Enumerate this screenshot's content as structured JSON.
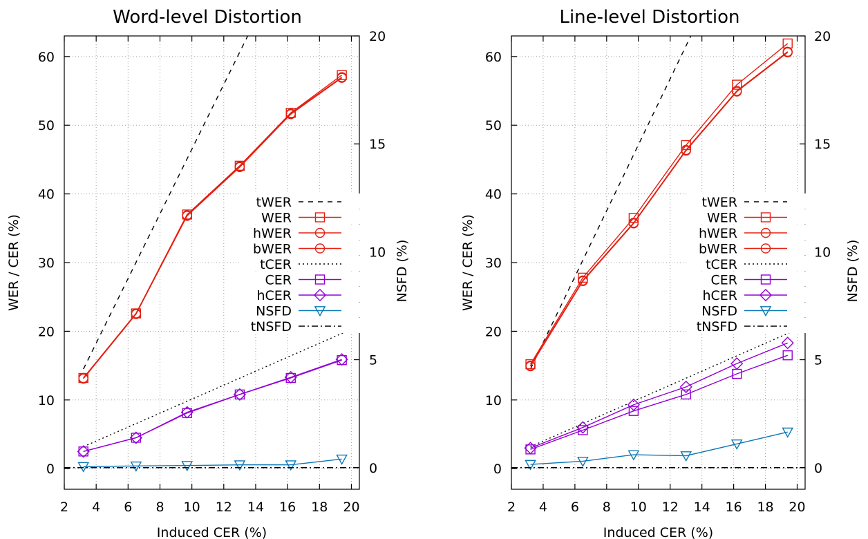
{
  "chart_data": [
    {
      "type": "line",
      "title": "Word-level Distortion",
      "xlabel": "Induced CER (%)",
      "ylabel": "WER / CER (%)",
      "y2label": "NSFD (%)",
      "xlim": [
        2,
        20.5
      ],
      "ylim": [
        -3,
        63
      ],
      "y2lim": [
        -1,
        20
      ],
      "xticks": [
        2,
        4,
        6,
        8,
        10,
        12,
        14,
        16,
        18,
        20
      ],
      "yticks": [
        0,
        10,
        20,
        30,
        40,
        50,
        60
      ],
      "y2ticks": [
        0,
        5,
        10,
        15,
        20
      ],
      "grid": true,
      "legend_position": "center-right",
      "series": [
        {
          "name": "tWER",
          "axis": "y",
          "style": "dashed",
          "color": "#000000",
          "marker": "none",
          "x": [
            3.2,
            13.5
          ],
          "y": [
            14.5,
            63
          ]
        },
        {
          "name": "WER",
          "axis": "y",
          "style": "solid",
          "color": "#e51e10",
          "marker": "square",
          "x": [
            3.2,
            6.5,
            9.7,
            13.0,
            16.2,
            19.4
          ],
          "y": [
            13.2,
            22.6,
            37.0,
            44.1,
            51.8,
            57.3
          ]
        },
        {
          "name": "hWER",
          "axis": "y",
          "style": "solid",
          "color": "#e51e10",
          "marker": "circle",
          "x": [
            3.2,
            6.5,
            9.7,
            13.0,
            16.2,
            19.4
          ],
          "y": [
            13.2,
            22.6,
            36.9,
            44.0,
            51.7,
            57.0
          ]
        },
        {
          "name": "bWER",
          "axis": "y",
          "style": "solid",
          "color": "#e51e10",
          "marker": "circle",
          "x": [
            3.2,
            6.5,
            9.7,
            13.0,
            16.2,
            19.4
          ],
          "y": [
            13.1,
            22.5,
            36.8,
            43.9,
            51.6,
            56.9
          ]
        },
        {
          "name": "tCER",
          "axis": "y",
          "style": "dotted",
          "color": "#000000",
          "marker": "none",
          "x": [
            3.2,
            20.5
          ],
          "y": [
            3.2,
            20.8
          ]
        },
        {
          "name": "CER",
          "axis": "y",
          "style": "solid",
          "color": "#9400d3",
          "marker": "square",
          "x": [
            3.2,
            6.5,
            9.7,
            13.0,
            16.2,
            19.4
          ],
          "y": [
            2.5,
            4.5,
            8.1,
            10.8,
            13.2,
            15.8
          ]
        },
        {
          "name": "hCER",
          "axis": "y",
          "style": "solid",
          "color": "#9400d3",
          "marker": "diamond",
          "x": [
            3.2,
            6.5,
            9.7,
            13.0,
            16.2,
            19.4
          ],
          "y": [
            2.5,
            4.5,
            8.2,
            10.8,
            13.3,
            15.9
          ]
        },
        {
          "name": "NSFD",
          "axis": "y2",
          "style": "solid",
          "color": "#0a77b5",
          "marker": "triangle-down",
          "x": [
            3.2,
            6.5,
            9.7,
            13.0,
            16.2,
            19.4
          ],
          "y": [
            0.05,
            0.08,
            0.1,
            0.13,
            0.13,
            0.4
          ]
        },
        {
          "name": "tNSFD",
          "axis": "y2",
          "style": "dashdot",
          "color": "#000000",
          "marker": "none",
          "x": [
            2,
            20.5
          ],
          "y": [
            0,
            0
          ]
        }
      ]
    },
    {
      "type": "line",
      "title": "Line-level Distortion",
      "xlabel": "Induced CER (%)",
      "ylabel": "WER / CER (%)",
      "y2label": "NSFD (%)",
      "xlim": [
        2,
        20.5
      ],
      "ylim": [
        -3,
        63
      ],
      "y2lim": [
        -1,
        20
      ],
      "xticks": [
        2,
        4,
        6,
        8,
        10,
        12,
        14,
        16,
        18,
        20
      ],
      "yticks": [
        0,
        10,
        20,
        30,
        40,
        50,
        60
      ],
      "y2ticks": [
        0,
        5,
        10,
        15,
        20
      ],
      "grid": true,
      "legend_position": "center-right",
      "series": [
        {
          "name": "tWER",
          "axis": "y",
          "style": "dashed",
          "color": "#000000",
          "marker": "none",
          "x": [
            3.2,
            13.3
          ],
          "y": [
            14.5,
            63
          ]
        },
        {
          "name": "WER",
          "axis": "y",
          "style": "solid",
          "color": "#e51e10",
          "marker": "square",
          "x": [
            3.2,
            6.5,
            9.7,
            13.0,
            16.2,
            19.4
          ],
          "y": [
            15.2,
            27.8,
            36.5,
            47.1,
            55.9,
            61.9
          ]
        },
        {
          "name": "hWER",
          "axis": "y",
          "style": "solid",
          "color": "#e51e10",
          "marker": "circle",
          "x": [
            3.2,
            6.5,
            9.7,
            13.0,
            16.2,
            19.4
          ],
          "y": [
            15.0,
            27.4,
            35.8,
            46.4,
            55.0,
            60.7
          ]
        },
        {
          "name": "bWER",
          "axis": "y",
          "style": "solid",
          "color": "#e51e10",
          "marker": "circle",
          "x": [
            3.2,
            6.5,
            9.7,
            13.0,
            16.2,
            19.4
          ],
          "y": [
            14.9,
            27.3,
            35.7,
            46.3,
            54.9,
            60.6
          ]
        },
        {
          "name": "tCER",
          "axis": "y",
          "style": "dotted",
          "color": "#000000",
          "marker": "none",
          "x": [
            3.2,
            20.5
          ],
          "y": [
            3.2,
            20.8
          ]
        },
        {
          "name": "CER",
          "axis": "y",
          "style": "solid",
          "color": "#9400d3",
          "marker": "square",
          "x": [
            3.2,
            6.5,
            9.7,
            13.0,
            16.2,
            19.4
          ],
          "y": [
            2.8,
            5.6,
            8.4,
            10.8,
            13.8,
            16.5
          ]
        },
        {
          "name": "hCER",
          "axis": "y",
          "style": "solid",
          "color": "#9400d3",
          "marker": "diamond",
          "x": [
            3.2,
            6.5,
            9.7,
            13.0,
            16.2,
            19.4
          ],
          "y": [
            3.0,
            6.0,
            9.3,
            11.9,
            15.3,
            18.3
          ]
        },
        {
          "name": "NSFD",
          "axis": "y2",
          "style": "solid",
          "color": "#0a77b5",
          "marker": "triangle-down",
          "x": [
            3.2,
            6.5,
            9.7,
            13.0,
            16.2,
            19.4
          ],
          "y": [
            0.15,
            0.3,
            0.6,
            0.55,
            1.1,
            1.65
          ]
        },
        {
          "name": "tNSFD",
          "axis": "y2",
          "style": "dashdot",
          "color": "#000000",
          "marker": "none",
          "x": [
            2,
            20.5
          ],
          "y": [
            0,
            0
          ]
        }
      ]
    }
  ]
}
